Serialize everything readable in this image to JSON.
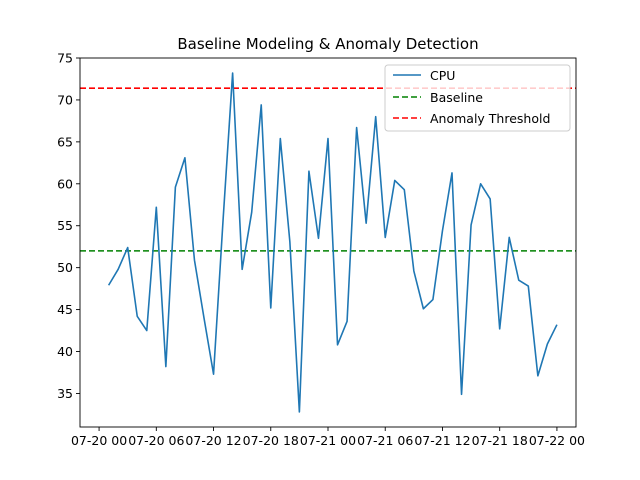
{
  "chart_data": {
    "type": "line",
    "title": "Baseline Modeling & Anomaly Detection",
    "xlabel": "",
    "ylabel": "",
    "xlim": [
      "2024-07-19T22:00",
      "2024-07-22T02:00"
    ],
    "ylim": [
      31,
      75
    ],
    "x_ticks": [
      {
        "t": "2024-07-20T00:00",
        "label": "07-20 00"
      },
      {
        "t": "2024-07-20T06:00",
        "label": "07-20 06"
      },
      {
        "t": "2024-07-20T12:00",
        "label": "07-20 12"
      },
      {
        "t": "2024-07-20T18:00",
        "label": "07-20 18"
      },
      {
        "t": "2024-07-21T00:00",
        "label": "07-21 00"
      },
      {
        "t": "2024-07-21T06:00",
        "label": "07-21 06"
      },
      {
        "t": "2024-07-21T12:00",
        "label": "07-21 12"
      },
      {
        "t": "2024-07-21T18:00",
        "label": "07-21 18"
      },
      {
        "t": "2024-07-22T00:00",
        "label": "07-22 00"
      }
    ],
    "y_ticks": [
      35,
      40,
      45,
      50,
      55,
      60,
      65,
      70,
      75
    ],
    "series": [
      {
        "name": "CPU",
        "color": "#1f77b4",
        "x": [
          "2024-07-20T01:00",
          "2024-07-20T02:00",
          "2024-07-20T03:00",
          "2024-07-20T04:00",
          "2024-07-20T05:00",
          "2024-07-20T06:00",
          "2024-07-20T07:00",
          "2024-07-20T08:00",
          "2024-07-20T09:00",
          "2024-07-20T10:00",
          "2024-07-20T11:00",
          "2024-07-20T12:00",
          "2024-07-20T13:00",
          "2024-07-20T14:00",
          "2024-07-20T15:00",
          "2024-07-20T16:00",
          "2024-07-20T17:00",
          "2024-07-20T18:00",
          "2024-07-20T19:00",
          "2024-07-20T20:00",
          "2024-07-20T21:00",
          "2024-07-20T22:00",
          "2024-07-20T23:00",
          "2024-07-21T00:00",
          "2024-07-21T01:00",
          "2024-07-21T02:00",
          "2024-07-21T03:00",
          "2024-07-21T04:00",
          "2024-07-21T05:00",
          "2024-07-21T06:00",
          "2024-07-21T07:00",
          "2024-07-21T08:00",
          "2024-07-21T09:00",
          "2024-07-21T10:00",
          "2024-07-21T11:00",
          "2024-07-21T12:00",
          "2024-07-21T13:00",
          "2024-07-21T14:00",
          "2024-07-21T15:00",
          "2024-07-21T16:00",
          "2024-07-21T17:00",
          "2024-07-21T18:00",
          "2024-07-21T19:00",
          "2024-07-21T20:00",
          "2024-07-21T21:00",
          "2024-07-21T22:00",
          "2024-07-21T23:00",
          "2024-07-22T00:00"
        ],
        "values": [
          47.9,
          49.8,
          52.4,
          44.2,
          42.5,
          57.2,
          38.2,
          59.6,
          63.1,
          50.9,
          44.0,
          37.3,
          55.7,
          73.2,
          49.8,
          56.6,
          69.4,
          45.2,
          65.4,
          53.1,
          32.8,
          61.5,
          53.5,
          65.4,
          40.8,
          43.6,
          66.7,
          55.3,
          68.0,
          53.6,
          60.4,
          59.3,
          49.6,
          45.1,
          46.2,
          54.4,
          61.3,
          34.9,
          55.1,
          60.0,
          58.2,
          42.7,
          53.6,
          48.5,
          47.8,
          37.1,
          40.9,
          43.2
        ]
      }
    ],
    "baseline": {
      "name": "Baseline",
      "value": 52.0,
      "color": "#008000"
    },
    "threshold": {
      "name": "Anomaly Threshold",
      "value": 71.4,
      "color": "#ff0000"
    },
    "legend": {
      "position": "upper right"
    },
    "grid": false
  }
}
